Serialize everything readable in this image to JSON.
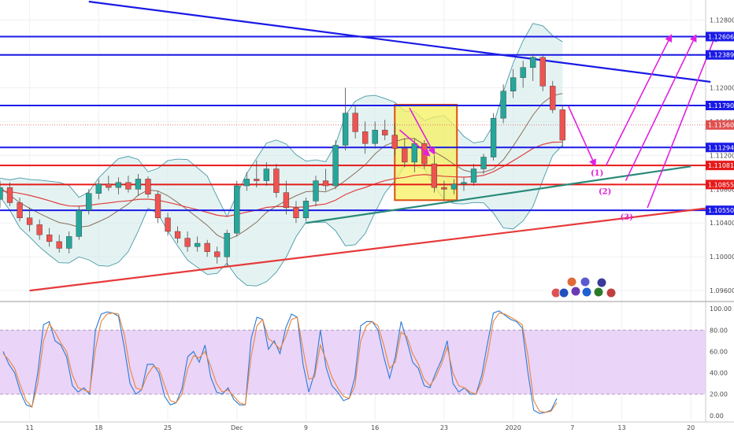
{
  "chart_data": [
    {
      "type": "candlestick",
      "title": "",
      "y_ticks": [
        "1.12800",
        "1.12400",
        "1.12000",
        "1.11600",
        "1.11200",
        "1.10800",
        "1.10400",
        "1.10000",
        "1.09600"
      ],
      "y_tick_values": [
        1.128,
        1.124,
        1.12,
        1.116,
        1.112,
        1.108,
        1.104,
        1.1,
        1.096
      ],
      "ylim": [
        1.0948,
        1.1302
      ],
      "x_ticks": [
        "11",
        "18",
        "25",
        "Dec",
        "9",
        "16",
        "23",
        "2020",
        "7",
        "13",
        "20"
      ],
      "x_tick_index": [
        3,
        10,
        17,
        24,
        31,
        38,
        45,
        52,
        58,
        63,
        70
      ],
      "xlim": [
        0,
        71.5
      ],
      "horizontal_levels": [
        {
          "value": 1.12606,
          "label": "1.12606",
          "color": "#1a1ae6"
        },
        {
          "value": 1.12389,
          "label": "1.12389",
          "color": "#1a1ae6"
        },
        {
          "value": 1.1179,
          "label": "1.11790",
          "color": "#1a1ae6"
        },
        {
          "value": 1.11294,
          "label": "1.11294",
          "color": "#1a1ae6"
        },
        {
          "value": 1.11081,
          "label": "1.11081",
          "color": "#e61a1a"
        },
        {
          "value": 1.10855,
          "label": "1.10855",
          "color": "#e61a1a"
        },
        {
          "value": 1.1055,
          "label": "1.10550",
          "color": "#1a1ae6"
        }
      ],
      "last_price": {
        "value": 1.1156,
        "label": "1.11560",
        "color": "#e05050"
      },
      "trendlines": [
        {
          "name": "blue-resistance",
          "color": "#1a1ae6",
          "from": [
            9,
            1.1302
          ],
          "to": [
            72,
            1.1207
          ]
        },
        {
          "name": "red-support",
          "color": "#e63a3a",
          "from": [
            3,
            1.096
          ],
          "to": [
            72,
            1.1058
          ]
        },
        {
          "name": "teal-support",
          "color": "#2a8a7a",
          "from": [
            31,
            1.104
          ],
          "to": [
            70,
            1.1107
          ]
        }
      ],
      "highlight_box": {
        "x0": 40,
        "x1": 46.3,
        "y0": 1.1067,
        "y1": 1.118,
        "fill": "#f7f060",
        "stroke": "#e05010"
      },
      "scenario_labels": [
        {
          "text": "(1)",
          "x": 60.5,
          "y": 1.1096
        },
        {
          "text": "(2)",
          "x": 61.3,
          "y": 1.1074
        },
        {
          "text": "(3)",
          "x": 63.5,
          "y": 1.1044
        }
      ],
      "candles": [
        [
          0,
          1.1068,
          1.109,
          1.1058,
          1.1082
        ],
        [
          1,
          1.1082,
          1.1088,
          1.106,
          1.1064
        ],
        [
          2,
          1.1064,
          1.107,
          1.1042,
          1.1046
        ],
        [
          3,
          1.1046,
          1.1058,
          1.103,
          1.1038
        ],
        [
          4,
          1.1038,
          1.1044,
          1.102,
          1.1026
        ],
        [
          5,
          1.1026,
          1.1034,
          1.1012,
          1.1018
        ],
        [
          6,
          1.1018,
          1.1026,
          1.1005,
          1.101
        ],
        [
          7,
          1.101,
          1.103,
          1.1004,
          1.1024
        ],
        [
          8,
          1.1024,
          1.106,
          1.102,
          1.1055
        ],
        [
          9,
          1.1055,
          1.108,
          1.105,
          1.1075
        ],
        [
          10,
          1.1075,
          1.1092,
          1.1068,
          1.1086
        ],
        [
          11,
          1.1086,
          1.1096,
          1.1078,
          1.1082
        ],
        [
          12,
          1.1082,
          1.1094,
          1.1074,
          1.1088
        ],
        [
          13,
          1.1088,
          1.1096,
          1.1076,
          1.108
        ],
        [
          14,
          1.108,
          1.1098,
          1.1072,
          1.1092
        ],
        [
          15,
          1.1092,
          1.1095,
          1.107,
          1.1074
        ],
        [
          16,
          1.1074,
          1.1078,
          1.104,
          1.1046
        ],
        [
          17,
          1.1046,
          1.1052,
          1.1025,
          1.103
        ],
        [
          18,
          1.103,
          1.1036,
          1.1016,
          1.1022
        ],
        [
          19,
          1.1022,
          1.103,
          1.1006,
          1.1012
        ],
        [
          20,
          1.1012,
          1.1024,
          1.1006,
          1.1016
        ],
        [
          21,
          1.1016,
          1.102,
          1.1,
          1.1006
        ],
        [
          22,
          1.1006,
          1.1012,
          1.0992,
          1.1
        ],
        [
          23,
          1.1,
          1.1032,
          1.0988,
          1.1028
        ],
        [
          24,
          1.1028,
          1.109,
          1.1024,
          1.1084
        ],
        [
          25,
          1.1084,
          1.11,
          1.1078,
          1.1092
        ],
        [
          26,
          1.1092,
          1.1114,
          1.1082,
          1.109
        ],
        [
          27,
          1.109,
          1.1112,
          1.1084,
          1.1104
        ],
        [
          28,
          1.1104,
          1.111,
          1.107,
          1.1076
        ],
        [
          29,
          1.1076,
          1.109,
          1.105,
          1.1058
        ],
        [
          30,
          1.1058,
          1.1066,
          1.104,
          1.1046
        ],
        [
          31,
          1.1046,
          1.107,
          1.1042,
          1.1066
        ],
        [
          32,
          1.1066,
          1.1096,
          1.106,
          1.109
        ],
        [
          33,
          1.109,
          1.1104,
          1.1078,
          1.1084
        ],
        [
          34,
          1.1084,
          1.1138,
          1.108,
          1.1132
        ],
        [
          35,
          1.1132,
          1.12,
          1.1126,
          1.117
        ],
        [
          36,
          1.117,
          1.118,
          1.114,
          1.1148
        ],
        [
          37,
          1.1148,
          1.116,
          1.1122,
          1.1134
        ],
        [
          38,
          1.1134,
          1.116,
          1.1128,
          1.115
        ],
        [
          39,
          1.115,
          1.1162,
          1.1138,
          1.1144
        ],
        [
          40,
          1.1144,
          1.1158,
          1.112,
          1.1128
        ],
        [
          41,
          1.1128,
          1.114,
          1.1106,
          1.1112
        ],
        [
          42,
          1.1112,
          1.114,
          1.11,
          1.1134
        ],
        [
          43,
          1.1134,
          1.1138,
          1.1104,
          1.111
        ],
        [
          44,
          1.111,
          1.112,
          1.1076,
          1.1082
        ],
        [
          45,
          1.1082,
          1.109,
          1.1066,
          1.108
        ],
        [
          46,
          1.108,
          1.1092,
          1.1074,
          1.1086
        ],
        [
          47,
          1.1086,
          1.1094,
          1.1078,
          1.1088
        ],
        [
          48,
          1.1088,
          1.111,
          1.1084,
          1.1104
        ],
        [
          49,
          1.1104,
          1.1122,
          1.1098,
          1.1118
        ],
        [
          50,
          1.1118,
          1.117,
          1.1114,
          1.1164
        ],
        [
          51,
          1.1164,
          1.1204,
          1.1158,
          1.1196
        ],
        [
          52,
          1.1196,
          1.1222,
          1.1188,
          1.1212
        ],
        [
          53,
          1.1212,
          1.1232,
          1.12,
          1.1224
        ],
        [
          54,
          1.1224,
          1.124,
          1.1208,
          1.1236
        ],
        [
          55,
          1.1236,
          1.1238,
          1.1196,
          1.1202
        ],
        [
          56,
          1.1202,
          1.1208,
          1.117,
          1.1174
        ],
        [
          57,
          1.1174,
          1.118,
          1.113,
          1.1138
        ]
      ]
    },
    {
      "type": "line",
      "title": "",
      "y_ticks": [
        "100.00",
        "80.00",
        "60.00",
        "40.00",
        "20.00",
        "0.00"
      ],
      "y_tick_values": [
        100,
        80,
        60,
        40,
        20,
        0
      ],
      "ylim": [
        -6,
        106
      ],
      "band": [
        20,
        80
      ],
      "series": [
        {
          "color": "#2a7bd6",
          "values": [
            60,
            48,
            40,
            22,
            10,
            8,
            40,
            85,
            88,
            70,
            66,
            55,
            28,
            22,
            26,
            20,
            80,
            95,
            97,
            96,
            93,
            64,
            30,
            20,
            24,
            48,
            48,
            40,
            18,
            10,
            12,
            25,
            55,
            60,
            50,
            66,
            36,
            22,
            20,
            26,
            15,
            10,
            10,
            72,
            92,
            90,
            62,
            70,
            58,
            82,
            95,
            92,
            48,
            22,
            40,
            80,
            45,
            28,
            22,
            14,
            16,
            36,
            84,
            88,
            88,
            80,
            55,
            35,
            55,
            88,
            70,
            50,
            44,
            28,
            26,
            40,
            52,
            70,
            30,
            22,
            26,
            20,
            20,
            38,
            68,
            96,
            98,
            94,
            90,
            88,
            82,
            40,
            5,
            2,
            3,
            5,
            16
          ]
        },
        {
          "color": "#e8853a",
          "values": [
            58,
            52,
            44,
            28,
            14,
            8,
            30,
            70,
            86,
            78,
            68,
            60,
            38,
            26,
            24,
            22,
            62,
            88,
            95,
            96,
            95,
            76,
            44,
            26,
            24,
            38,
            46,
            44,
            28,
            14,
            12,
            20,
            44,
            56,
            54,
            60,
            46,
            30,
            22,
            24,
            18,
            12,
            10,
            55,
            84,
            90,
            72,
            68,
            62,
            74,
            90,
            92,
            62,
            34,
            36,
            66,
            52,
            36,
            26,
            18,
            16,
            28,
            70,
            84,
            88,
            84,
            66,
            44,
            50,
            78,
            74,
            58,
            48,
            34,
            28,
            36,
            48,
            64,
            40,
            28,
            26,
            22,
            20,
            32,
            56,
            88,
            96,
            95,
            92,
            89,
            85,
            56,
            14,
            4,
            3,
            4,
            12
          ]
        }
      ]
    }
  ]
}
